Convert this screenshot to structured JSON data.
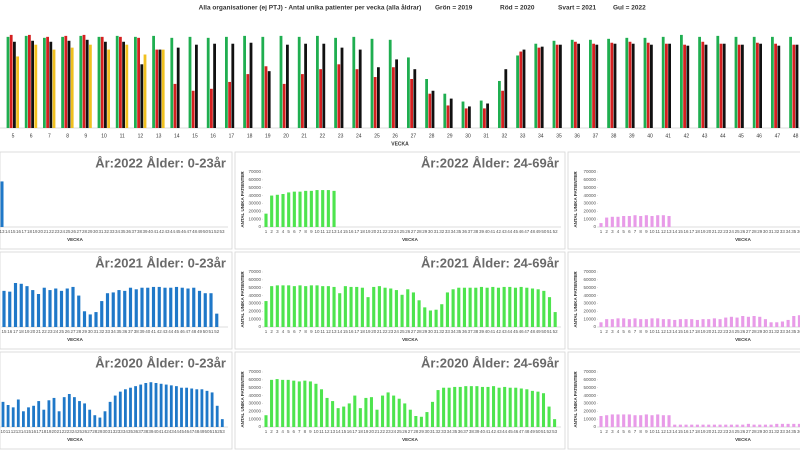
{
  "chart_data": [
    {
      "type": "grouped_bar",
      "title": "Alla organisationer (ej PTJ)   -   Antal unika patienter per vecka (alla åldrar)",
      "x_label": "VECKA",
      "categories": [
        5,
        6,
        7,
        8,
        9,
        10,
        11,
        12,
        13,
        14,
        15,
        16,
        17,
        18,
        19,
        20,
        21,
        22,
        23,
        24,
        25,
        26,
        27,
        28,
        29,
        30,
        31,
        32,
        33,
        34,
        35,
        36,
        37,
        38,
        39,
        40,
        41,
        42,
        43,
        44,
        45,
        46,
        47,
        48
      ],
      "ylim": [
        0,
        100
      ],
      "series": [
        {
          "name": "Grön = 2019",
          "color": "#1fae50",
          "values": [
            93,
            94,
            92,
            93,
            94,
            93,
            94,
            93,
            94,
            92,
            93,
            92,
            93,
            94,
            93,
            94,
            93,
            94,
            92,
            93,
            91,
            90,
            72,
            50,
            35,
            27,
            28,
            48,
            74,
            86,
            89,
            90,
            90,
            91,
            92,
            92,
            93,
            95,
            93,
            94,
            93,
            93,
            93,
            93
          ]
        },
        {
          "name": "Röd = 2020",
          "color": "#d42020",
          "values": [
            95,
            95,
            93,
            94,
            95,
            93,
            93,
            92,
            80,
            45,
            38,
            40,
            47,
            55,
            63,
            45,
            55,
            60,
            65,
            60,
            52,
            62,
            50,
            35,
            23,
            20,
            20,
            38,
            78,
            82,
            85,
            88,
            86,
            87,
            88,
            87,
            86,
            85,
            88,
            86,
            85,
            87,
            86,
            85
          ]
        },
        {
          "name": "Svart = 2021",
          "color": "#111111",
          "values": [
            88,
            89,
            88,
            89,
            90,
            88,
            88,
            65,
            80,
            82,
            85,
            86,
            86,
            87,
            58,
            85,
            86,
            86,
            82,
            80,
            62,
            70,
            60,
            38,
            30,
            22,
            25,
            60,
            80,
            83,
            85,
            86,
            85,
            86,
            86,
            85,
            86,
            84,
            85,
            86,
            85,
            86,
            84,
            85
          ]
        },
        {
          "name": "Gul = 2022",
          "color": "#f0c020",
          "values": [
            73,
            85,
            80,
            82,
            85,
            80,
            85,
            75,
            80,
            null,
            null,
            null,
            null,
            null,
            null,
            null,
            null,
            null,
            null,
            null,
            null,
            null,
            null,
            null,
            null,
            null,
            null,
            null,
            null,
            null,
            null,
            null,
            null,
            null,
            null,
            null,
            null,
            null,
            null,
            null,
            null,
            null,
            null,
            null
          ]
        }
      ]
    },
    {
      "type": "bar",
      "title": "År:2022   Ålder: 0-23år",
      "x_label": "VECKA",
      "color": "#1f78c8",
      "ylim": [
        0,
        70000
      ],
      "categories": [
        13,
        14,
        15,
        16,
        17,
        18,
        19,
        20,
        21,
        22,
        23,
        24,
        25,
        26,
        27,
        28,
        29,
        30,
        31,
        32,
        33,
        34,
        35,
        36,
        37,
        38,
        39,
        40,
        41,
        42,
        43,
        44,
        45,
        46,
        47,
        48,
        49,
        50,
        51,
        52,
        53
      ],
      "values": [
        58000,
        null,
        null,
        null,
        null,
        null,
        null,
        null,
        null,
        null,
        null,
        null,
        null,
        null,
        null,
        null,
        null,
        null,
        null,
        null,
        null,
        null,
        null,
        null,
        null,
        null,
        null,
        null,
        null,
        null,
        null,
        null,
        null,
        null,
        null,
        null,
        null,
        null,
        null,
        null,
        null
      ]
    },
    {
      "type": "bar",
      "title": "År:2022   Ålder: 24-69år",
      "x_label": "VECKA",
      "y_label": "ANTAL UNIKA PATIENTER",
      "color": "#4ee44e",
      "ylim": [
        0,
        70000
      ],
      "yticks": [
        0,
        10000,
        20000,
        30000,
        40000,
        50000,
        60000,
        70000
      ],
      "categories": [
        1,
        2,
        3,
        4,
        5,
        6,
        7,
        8,
        9,
        10,
        11,
        12,
        13,
        14,
        15,
        16,
        17,
        18,
        19,
        20,
        21,
        22,
        23,
        24,
        25,
        26,
        27,
        28,
        29,
        30,
        31,
        32,
        33,
        34,
        35,
        36,
        37,
        38,
        39,
        40,
        41,
        42,
        43,
        44,
        45,
        46,
        47,
        48,
        49,
        50,
        51,
        52
      ],
      "values": [
        17000,
        40000,
        41000,
        42000,
        44000,
        45000,
        45000,
        46000,
        46000,
        47000,
        47000,
        47000,
        46000,
        null,
        null,
        null,
        null,
        null,
        null,
        null,
        null,
        null,
        null,
        null,
        null,
        null,
        null,
        null,
        null,
        null,
        null,
        null,
        null,
        null,
        null,
        null,
        null,
        null,
        null,
        null,
        null,
        null,
        null,
        null,
        null,
        null,
        null,
        null,
        null,
        null,
        null,
        null
      ]
    },
    {
      "type": "bar",
      "x_label": "VECKA",
      "y_label": "ANTAL UNIKA PATIENTER",
      "color": "#e89be8",
      "ylim": [
        0,
        70000
      ],
      "yticks": [
        0,
        10000,
        20000,
        30000,
        40000,
        50000,
        60000,
        70000
      ],
      "categories": [
        1,
        2,
        3,
        4,
        5,
        6,
        7,
        8,
        9,
        10,
        11,
        12,
        13,
        14,
        15,
        16,
        17,
        18,
        19,
        20,
        21,
        22,
        23,
        24,
        25,
        26,
        27,
        28,
        29,
        30,
        31,
        32,
        33,
        34,
        35,
        36
      ],
      "values": [
        5000,
        12000,
        13000,
        13000,
        14000,
        14000,
        15000,
        14000,
        15000,
        14000,
        15000,
        15000,
        14000,
        null,
        null,
        null,
        null,
        null,
        null,
        null,
        null,
        null,
        null,
        null,
        null,
        null,
        null,
        null,
        null,
        null,
        null,
        null,
        null,
        null,
        null,
        null
      ]
    },
    {
      "type": "bar",
      "title": "År:2021   Ålder: 0-23år",
      "x_label": "VECKA",
      "color": "#1f78c8",
      "ylim": [
        0,
        70000
      ],
      "categories": [
        15,
        16,
        17,
        18,
        19,
        20,
        21,
        22,
        23,
        24,
        25,
        26,
        27,
        28,
        29,
        30,
        31,
        32,
        33,
        34,
        35,
        36,
        37,
        38,
        39,
        40,
        41,
        42,
        43,
        44,
        45,
        46,
        47,
        48,
        49,
        50,
        51,
        52
      ],
      "values": [
        46000,
        45000,
        56000,
        55000,
        52000,
        47000,
        42000,
        50000,
        47000,
        49000,
        46000,
        49000,
        51000,
        40000,
        20000,
        16000,
        19000,
        33000,
        43000,
        44000,
        47000,
        46000,
        50000,
        48000,
        50000,
        50000,
        51000,
        51000,
        50000,
        50000,
        51000,
        50000,
        49000,
        50000,
        46000,
        43000,
        43000,
        17000
      ]
    },
    {
      "type": "bar",
      "title": "År:2021   Ålder: 24-69år",
      "x_label": "VECKA",
      "y_label": "ANTAL UNIKA PATIENTER",
      "color": "#4ee44e",
      "ylim": [
        0,
        70000
      ],
      "yticks": [
        0,
        10000,
        20000,
        30000,
        40000,
        50000,
        60000,
        70000
      ],
      "categories": [
        1,
        2,
        3,
        4,
        5,
        6,
        7,
        8,
        9,
        10,
        11,
        12,
        13,
        14,
        15,
        16,
        17,
        18,
        19,
        20,
        21,
        22,
        23,
        24,
        25,
        26,
        27,
        28,
        29,
        30,
        31,
        32,
        33,
        34,
        35,
        36,
        37,
        38,
        39,
        40,
        41,
        42,
        43,
        44,
        45,
        46,
        47,
        48,
        49,
        50,
        51,
        52
      ],
      "values": [
        33000,
        52000,
        53000,
        53000,
        53000,
        52000,
        53000,
        52000,
        53000,
        53000,
        52000,
        52000,
        51000,
        43000,
        52000,
        51000,
        51000,
        50000,
        38000,
        51000,
        52000,
        50000,
        49000,
        47000,
        41000,
        48000,
        44000,
        34000,
        25000,
        21000,
        22000,
        29000,
        44000,
        48000,
        50000,
        50000,
        50000,
        50000,
        51000,
        50000,
        51000,
        50000,
        51000,
        51000,
        50000,
        51000,
        50000,
        49000,
        48000,
        46000,
        38000,
        19000
      ]
    },
    {
      "type": "bar",
      "x_label": "VECKA",
      "y_label": "ANTAL UNIKA PATIENTER",
      "color": "#e89be8",
      "ylim": [
        0,
        70000
      ],
      "yticks": [
        0,
        10000,
        20000,
        30000,
        40000,
        50000,
        60000,
        70000
      ],
      "categories": [
        1,
        2,
        3,
        4,
        5,
        6,
        7,
        8,
        9,
        10,
        11,
        12,
        13,
        14,
        15,
        16,
        17,
        18,
        19,
        20,
        21,
        22,
        23,
        24,
        25,
        26,
        27,
        28,
        29,
        30,
        31,
        32,
        33,
        34,
        35,
        36
      ],
      "values": [
        6000,
        10000,
        10000,
        11000,
        11000,
        10000,
        11000,
        10000,
        10000,
        11000,
        11000,
        10000,
        10000,
        9000,
        10000,
        10000,
        10000,
        9000,
        10000,
        10000,
        11000,
        10000,
        12000,
        13000,
        12000,
        14000,
        13000,
        14000,
        13000,
        10000,
        6000,
        6000,
        7000,
        9000,
        14000,
        15000
      ]
    },
    {
      "type": "bar",
      "title": "År:2020   Ålder: 0-23år",
      "x_label": "VECKA",
      "color": "#1f78c8",
      "ylim": [
        0,
        70000
      ],
      "categories": [
        10,
        11,
        12,
        13,
        14,
        15,
        16,
        17,
        18,
        19,
        20,
        21,
        22,
        23,
        24,
        25,
        26,
        27,
        28,
        29,
        30,
        31,
        32,
        33,
        34,
        35,
        36,
        37,
        38,
        39,
        40,
        41,
        42,
        43,
        44,
        45,
        46,
        47,
        48,
        49,
        50,
        51,
        52,
        53
      ],
      "values": [
        32000,
        28000,
        25000,
        35000,
        20000,
        25000,
        27000,
        33000,
        22000,
        34000,
        37000,
        20000,
        38000,
        42000,
        38000,
        33000,
        30000,
        22000,
        15000,
        12000,
        20000,
        32000,
        40000,
        45000,
        48000,
        50000,
        52000,
        54000,
        56000,
        57000,
        56000,
        55000,
        54000,
        53000,
        52000,
        50000,
        50000,
        49000,
        48000,
        48000,
        46000,
        44000,
        27000,
        10000
      ]
    },
    {
      "type": "bar",
      "title": "År:2020   Ålder: 24-69år",
      "x_label": "VECKA",
      "y_label": "ANTAL UNIKA PATIENTER",
      "color": "#4ee44e",
      "ylim": [
        0,
        70000
      ],
      "yticks": [
        0,
        10000,
        20000,
        30000,
        40000,
        50000,
        60000,
        70000
      ],
      "categories": [
        1,
        2,
        3,
        4,
        5,
        6,
        7,
        8,
        9,
        10,
        11,
        12,
        13,
        14,
        15,
        16,
        17,
        18,
        19,
        20,
        21,
        22,
        23,
        24,
        25,
        26,
        27,
        28,
        29,
        30,
        31,
        32,
        33,
        34,
        35,
        36,
        37,
        38,
        39,
        40,
        41,
        42,
        43,
        44,
        45,
        46,
        47,
        48,
        49,
        50,
        51,
        52,
        53
      ],
      "values": [
        15000,
        60000,
        61000,
        60000,
        60000,
        59000,
        58000,
        59000,
        58000,
        55000,
        48000,
        37000,
        33000,
        24000,
        26000,
        30000,
        40000,
        24000,
        37000,
        38000,
        22000,
        40000,
        44000,
        40000,
        36000,
        30000,
        22000,
        14000,
        13000,
        19000,
        32000,
        47000,
        50000,
        50000,
        51000,
        51000,
        52000,
        52000,
        52000,
        51000,
        51000,
        52000,
        50000,
        51000,
        50000,
        50000,
        49000,
        48000,
        46000,
        45000,
        43000,
        26000,
        10000
      ]
    },
    {
      "type": "bar",
      "x_label": "VECKA",
      "y_label": "ANTAL UNIKA PATIENTER",
      "color": "#e89be8",
      "ylim": [
        0,
        70000
      ],
      "yticks": [
        0,
        10000,
        20000,
        30000,
        40000,
        50000,
        60000,
        70000
      ],
      "categories": [
        1,
        2,
        3,
        4,
        5,
        6,
        7,
        8,
        9,
        10,
        11,
        12,
        13,
        14,
        15,
        16,
        17,
        18,
        19,
        20,
        21,
        22,
        23,
        24,
        25,
        26,
        27,
        28,
        29,
        30,
        31,
        32,
        33,
        34,
        35,
        36
      ],
      "values": [
        14000,
        15000,
        16000,
        16000,
        16000,
        16000,
        15000,
        15000,
        16000,
        15000,
        16000,
        15000,
        15000,
        3000,
        3000,
        3000,
        3000,
        3000,
        3000,
        3000,
        3000,
        3000,
        3000,
        3000,
        3000,
        3000,
        4000,
        3000,
        3000,
        3000,
        3000,
        4000,
        4000,
        4000,
        4000,
        4000
      ]
    }
  ]
}
